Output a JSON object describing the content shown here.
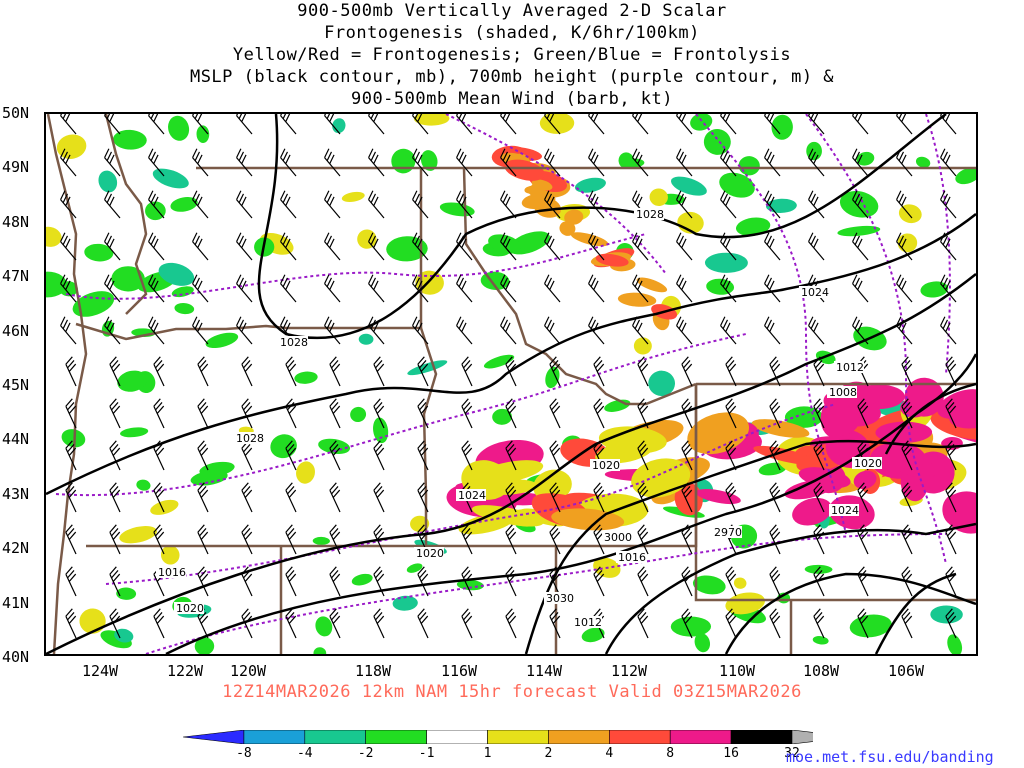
{
  "title": {
    "line1": "900-500mb Vertically Averaged 2-D Scalar",
    "line2": "Frontogenesis (shaded, K/6hr/100km)",
    "line3": "Yellow/Red = Frontogenesis;  Green/Blue = Frontolysis",
    "line4": "MSLP (black contour, mb), 700mb height (purple contour, m) &",
    "line5": "900-500mb Mean Wind (barb, kt)"
  },
  "lat_labels": [
    "50N",
    "49N",
    "48N",
    "47N",
    "46N",
    "45N",
    "44N",
    "43N",
    "42N",
    "41N",
    "40N"
  ],
  "lon_labels": [
    "124W",
    "122W",
    "120W",
    "118W",
    "116W",
    "114W",
    "112W",
    "110W",
    "108W",
    "106W"
  ],
  "contour_labels": {
    "mslp": [
      "1028",
      "1024",
      "1028",
      "1028",
      "1024",
      "1020",
      "1020",
      "1016",
      "1012",
      "1008",
      "1020",
      "1024",
      "1016",
      "1020",
      "1012"
    ],
    "height": [
      "3000",
      "2970",
      "3030"
    ]
  },
  "valid_line": "12Z14MAR2026 12km NAM 15hr forecast Valid 03Z15MAR2026",
  "colorbar": {
    "labels": [
      "-8",
      "-4",
      "-2",
      "-1",
      "1",
      "2",
      "4",
      "8",
      "16",
      "32"
    ],
    "colors": [
      "#2b2bff",
      "#1aa0d8",
      "#18c890",
      "#22dd22",
      "#ffffff",
      "#e6e01a",
      "#f0a020",
      "#ff4a3a",
      "#ee1a8a",
      "#000000",
      "#b0b0b0"
    ]
  },
  "credit": "moe.met.fsu.edu/banding",
  "colors": {
    "mslp_contour": "#000000",
    "height_contour": "#9a1ac8",
    "borders": "#7a5a48",
    "valid_text": "#ff6a5a",
    "credit_text": "#3a3aff"
  }
}
